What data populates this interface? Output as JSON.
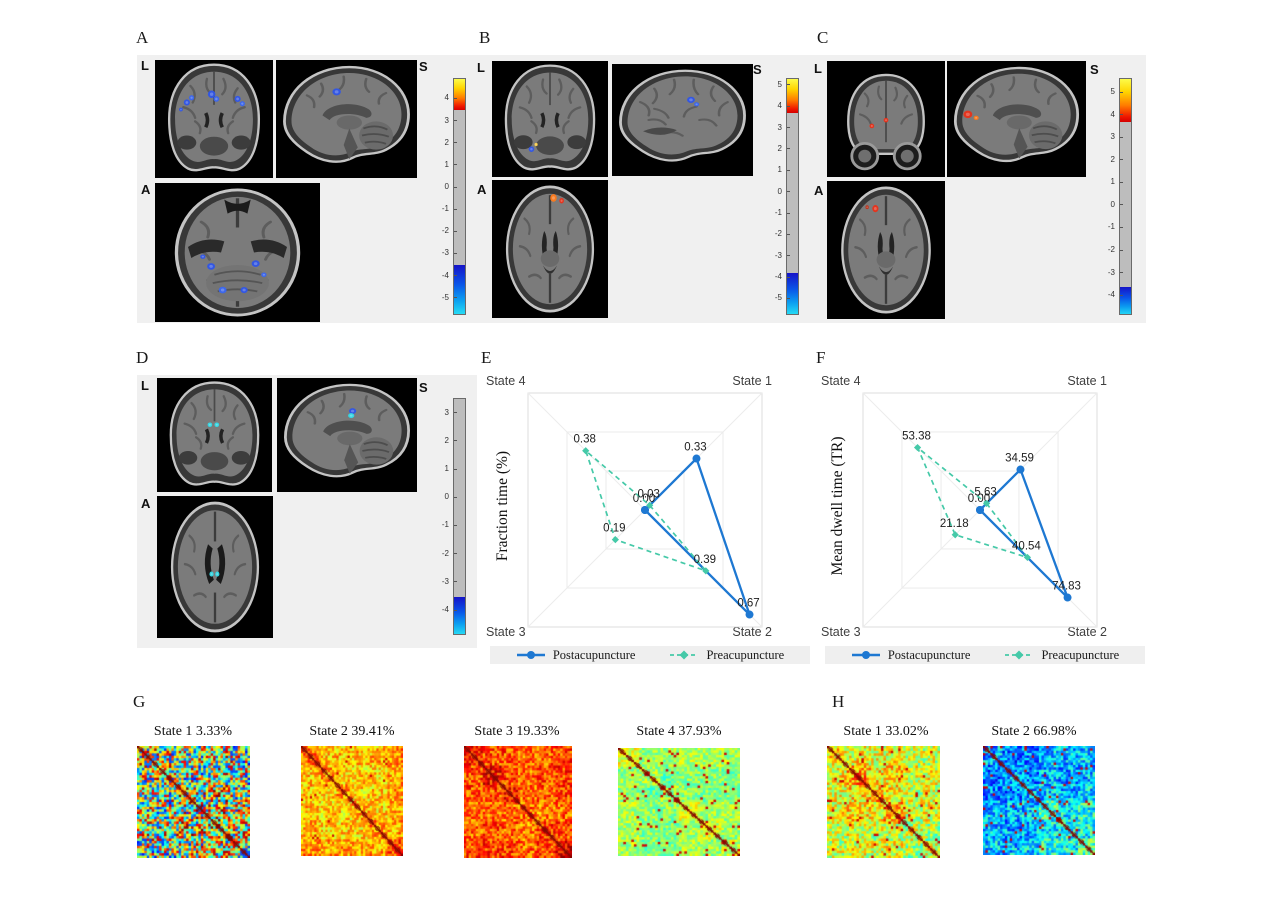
{
  "figure_background": "#ffffff",
  "panels": {
    "A": {
      "letter": "A",
      "left_label": "L",
      "anterior_label": "A",
      "superior_label": "S",
      "activation_colors": [
        "#2f55e8"
      ],
      "colorbar": {
        "vtop": 4.9,
        "vbottom": -5.8,
        "hot_end": 3.5,
        "cold_start": -3.5,
        "ticks": [
          "4",
          "3",
          "2",
          "1",
          "0",
          "-1",
          "-2",
          "-3",
          "-4",
          "-5"
        ]
      }
    },
    "B": {
      "letter": "B",
      "left_label": "L",
      "anterior_label": "A",
      "superior_label": "S",
      "activation_colors": [
        "#ff7a1a",
        "#2f55e8"
      ],
      "colorbar": {
        "vtop": 5.3,
        "vbottom": -5.8,
        "hot_end": 3.7,
        "cold_start": -3.8,
        "ticks": [
          "5",
          "4",
          "3",
          "2",
          "1",
          "0",
          "-1",
          "-2",
          "-3",
          "-4",
          "-5"
        ]
      }
    },
    "C": {
      "letter": "C",
      "left_label": "L",
      "anterior_label": "A",
      "superior_label": "S",
      "activation_colors": [
        "#e8321a"
      ],
      "colorbar": {
        "vtop": 5.6,
        "vbottom": -4.9,
        "hot_end": 3.7,
        "cold_start": -3.6,
        "ticks": [
          "5",
          "4",
          "3",
          "2",
          "1",
          "0",
          "-1",
          "-2",
          "-3",
          "-4"
        ]
      }
    },
    "D": {
      "letter": "D",
      "left_label": "L",
      "anterior_label": "A",
      "superior_label": "S",
      "activation_colors": [
        "#35dbe8",
        "#2f55e8"
      ],
      "colorbar": {
        "vtop": 3.5,
        "vbottom": -4.9,
        "hot_end": 3.5,
        "cold_start": -3.5,
        "ticks": [
          "3",
          "2",
          "1",
          "0",
          "-1",
          "-2",
          "-3",
          "-4"
        ]
      }
    },
    "E": {
      "letter": "E"
    },
    "F": {
      "letter": "F"
    },
    "G": {
      "letter": "G"
    },
    "H": {
      "letter": "H"
    }
  },
  "chart_data": [
    {
      "type": "radar",
      "panel": "E",
      "ylabel": "Fraction time (%)",
      "axes": [
        "State 1",
        "State 2",
        "State 3",
        "State 4"
      ],
      "axis_max": 0.75,
      "grid_levels": [
        0.25,
        0.5,
        0.75
      ],
      "value_decimals": 2,
      "legend_position": "bottom",
      "series": [
        {
          "name": "Postacupuncture",
          "color": "#1e78d2",
          "line": "solid",
          "values": [
            0.33,
            0.67,
            0.0,
            0.0
          ],
          "label_skip": [
            3
          ]
        },
        {
          "name": "Preacupuncture",
          "color": "#45c9a8",
          "line": "dashed",
          "values": [
            0.03,
            0.39,
            0.19,
            0.38
          ],
          "label_skip": []
        }
      ]
    },
    {
      "type": "radar",
      "panel": "F",
      "ylabel": "Mean dwell time (TR)",
      "axes": [
        "State 1",
        "State 2",
        "State 3",
        "State 4"
      ],
      "axis_max": 100,
      "grid_levels": [
        33.3,
        66.7,
        100
      ],
      "value_decimals": 2,
      "legend_position": "bottom",
      "series": [
        {
          "name": "Postacupuncture",
          "color": "#1e78d2",
          "line": "solid",
          "values": [
            34.59,
            74.83,
            0.0,
            0.0
          ],
          "label_skip": [
            3
          ]
        },
        {
          "name": "Preacupuncture",
          "color": "#45c9a8",
          "line": "dashed",
          "values": [
            5.63,
            40.54,
            21.18,
            53.38
          ],
          "label_skip": []
        }
      ]
    },
    {
      "type": "heatmap",
      "panel": "G",
      "colormap": "jet",
      "items": [
        {
          "title": "State 1 3.33%",
          "bias": 0.52,
          "spread": 0.4,
          "block": 0.18,
          "speckle": 0.0,
          "seed": 11
        },
        {
          "title": "State 2 39.41%",
          "bias": 0.7,
          "spread": 0.12,
          "block": 0.07,
          "speckle": 0.01,
          "seed": 22
        },
        {
          "title": "State 3 19.33%",
          "bias": 0.78,
          "spread": 0.12,
          "block": 0.06,
          "speckle": 0.0,
          "seed": 33
        },
        {
          "title": "State 4 37.93%",
          "bias": 0.52,
          "spread": 0.09,
          "block": 0.05,
          "speckle": 0.05,
          "seed": 44
        }
      ]
    },
    {
      "type": "heatmap",
      "panel": "H",
      "colormap": "jet",
      "items": [
        {
          "title": "State 1 33.02%",
          "bias": 0.6,
          "spread": 0.15,
          "block": 0.09,
          "speckle": 0.04,
          "seed": 55
        },
        {
          "title": "State 2 66.98%",
          "bias": 0.33,
          "spread": 0.15,
          "block": 0.1,
          "speckle": 0.03,
          "seed": 66
        }
      ]
    }
  ]
}
